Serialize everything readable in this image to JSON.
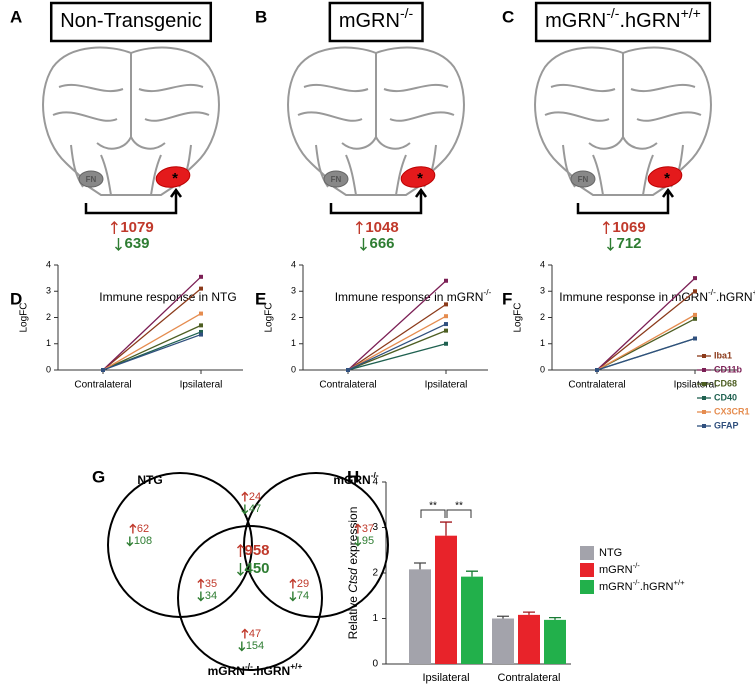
{
  "panel_letters": [
    "A",
    "B",
    "C",
    "D",
    "E",
    "F",
    "G",
    "H"
  ],
  "brains": [
    {
      "label": [
        {
          "text": "Non-Transgenic"
        }
      ],
      "nucleus_label": "FN",
      "lesion_marker": "*",
      "up": 1079,
      "down": 639
    },
    {
      "label": [
        {
          "text": "mGRN"
        },
        {
          "sup": "-/-"
        }
      ],
      "nucleus_label": "FN",
      "lesion_marker": "*",
      "up": 1048,
      "down": 666
    },
    {
      "label": [
        {
          "text": "mGRN"
        },
        {
          "sup": "-/-"
        },
        {
          "text": ".hGRN"
        },
        {
          "sup": "+/+"
        }
      ],
      "nucleus_label": "FN",
      "lesion_marker": "*",
      "up": 1069,
      "down": 712
    }
  ],
  "chart_data": [
    {
      "type": "line",
      "title": [
        {
          "text": "Immune response in NTG"
        }
      ],
      "y_label": "LogFC",
      "categories": [
        "Contralateral",
        "Ipsilateral"
      ],
      "ylim": [
        0,
        4
      ],
      "yticks": [
        0,
        1,
        2,
        3,
        4
      ],
      "series": [
        {
          "name": "Iba1",
          "color": "#8b3a1a",
          "values": [
            0,
            3.1
          ]
        },
        {
          "name": "CD11b",
          "color": "#7b1f55",
          "values": [
            0,
            3.55
          ]
        },
        {
          "name": "CD68",
          "color": "#4d5e22",
          "values": [
            0,
            1.7
          ]
        },
        {
          "name": "CD40",
          "color": "#1f6150",
          "values": [
            0,
            1.45
          ]
        },
        {
          "name": "CX3CR1",
          "color": "#e58c4f",
          "values": [
            0,
            2.15
          ]
        },
        {
          "name": "GFAP",
          "color": "#30507e",
          "values": [
            0,
            1.35
          ]
        }
      ]
    },
    {
      "type": "line",
      "title": [
        {
          "text": "Immune response in mGRN"
        },
        {
          "sup": "-/-"
        }
      ],
      "y_label": "LogFC",
      "categories": [
        "Contralateral",
        "Ipsilateral"
      ],
      "ylim": [
        0,
        4
      ],
      "yticks": [
        0,
        1,
        2,
        3,
        4
      ],
      "series": [
        {
          "name": "Iba1",
          "color": "#8b3a1a",
          "values": [
            0,
            2.5
          ]
        },
        {
          "name": "CD11b",
          "color": "#7b1f55",
          "values": [
            0,
            3.4
          ]
        },
        {
          "name": "CD68",
          "color": "#4d5e22",
          "values": [
            0,
            1.5
          ]
        },
        {
          "name": "CD40",
          "color": "#1f6150",
          "values": [
            0,
            1.0
          ]
        },
        {
          "name": "CX3CR1",
          "color": "#e58c4f",
          "values": [
            0,
            2.05
          ]
        },
        {
          "name": "GFAP",
          "color": "#30507e",
          "values": [
            0,
            1.75
          ]
        }
      ]
    },
    {
      "type": "line",
      "title": [
        {
          "text": "Immune response in mGRN"
        },
        {
          "sup": "-/-"
        },
        {
          "text": ".hGRN"
        },
        {
          "sup": "+/+"
        }
      ],
      "y_label": "LogFC",
      "categories": [
        "Contralateral",
        "Ipsilateral"
      ],
      "ylim": [
        0,
        4
      ],
      "yticks": [
        0,
        1,
        2,
        3,
        4
      ],
      "legend": "right",
      "series": [
        {
          "name": "Iba1",
          "color": "#8b3a1a",
          "values": [
            0,
            3.0
          ]
        },
        {
          "name": "CD11b",
          "color": "#7b1f55",
          "values": [
            0,
            3.5
          ]
        },
        {
          "name": "CD68",
          "color": "#4d5e22",
          "values": [
            0,
            1.95
          ]
        },
        {
          "name": "CD40",
          "color": "#1f6150",
          "values": [
            0,
            1.2
          ]
        },
        {
          "name": "CX3CR1",
          "color": "#e58c4f",
          "values": [
            0,
            2.1
          ]
        },
        {
          "name": "GFAP",
          "color": "#30507e",
          "values": [
            0,
            1.2
          ]
        }
      ]
    },
    {
      "type": "bar",
      "y_label": [
        {
          "text": "Relative "
        },
        {
          "italic": "Ctsd"
        },
        {
          "text": " expression"
        }
      ],
      "categories": [
        "Ipsilateral",
        "Contralateral"
      ],
      "ylim": [
        0,
        4
      ],
      "yticks": [
        0,
        1,
        2,
        3,
        4
      ],
      "legend": "right",
      "series": [
        {
          "name": [
            {
              "text": "NTG"
            }
          ],
          "color": "#a3a3ab",
          "values": [
            2.08,
            1.0
          ],
          "errors": [
            0.14,
            0.05
          ]
        },
        {
          "name": [
            {
              "text": "mGRN"
            },
            {
              "sup": "-/-"
            }
          ],
          "color": "#e8232a",
          "values": [
            2.82,
            1.08
          ],
          "errors": [
            0.3,
            0.06
          ]
        },
        {
          "name": [
            {
              "text": "mGRN"
            },
            {
              "sup": "-/-"
            },
            {
              "text": ".hGRN"
            },
            {
              "sup": "+/+"
            }
          ],
          "color": "#22b04b",
          "values": [
            1.92,
            0.97
          ],
          "errors": [
            0.12,
            0.05
          ]
        }
      ],
      "annotations": [
        "**",
        "**"
      ]
    }
  ],
  "venn": {
    "sets": [
      {
        "label": [
          {
            "text": "NTG"
          }
        ]
      },
      {
        "label": [
          {
            "text": "mGRN"
          },
          {
            "sup": "-/-"
          }
        ]
      },
      {
        "label": [
          {
            "text": "mGRN"
          },
          {
            "sup": "-/-"
          },
          {
            "text": ".hGRN"
          },
          {
            "sup": "+/+"
          }
        ]
      }
    ],
    "regions": [
      {
        "up": 62,
        "down": 108
      },
      {
        "up": 24,
        "down": 47
      },
      {
        "up": 37,
        "down": 95
      },
      {
        "up": 958,
        "down": 450
      },
      {
        "up": 35,
        "down": 34
      },
      {
        "up": 29,
        "down": 74
      },
      {
        "up": 47,
        "down": 154
      }
    ]
  }
}
